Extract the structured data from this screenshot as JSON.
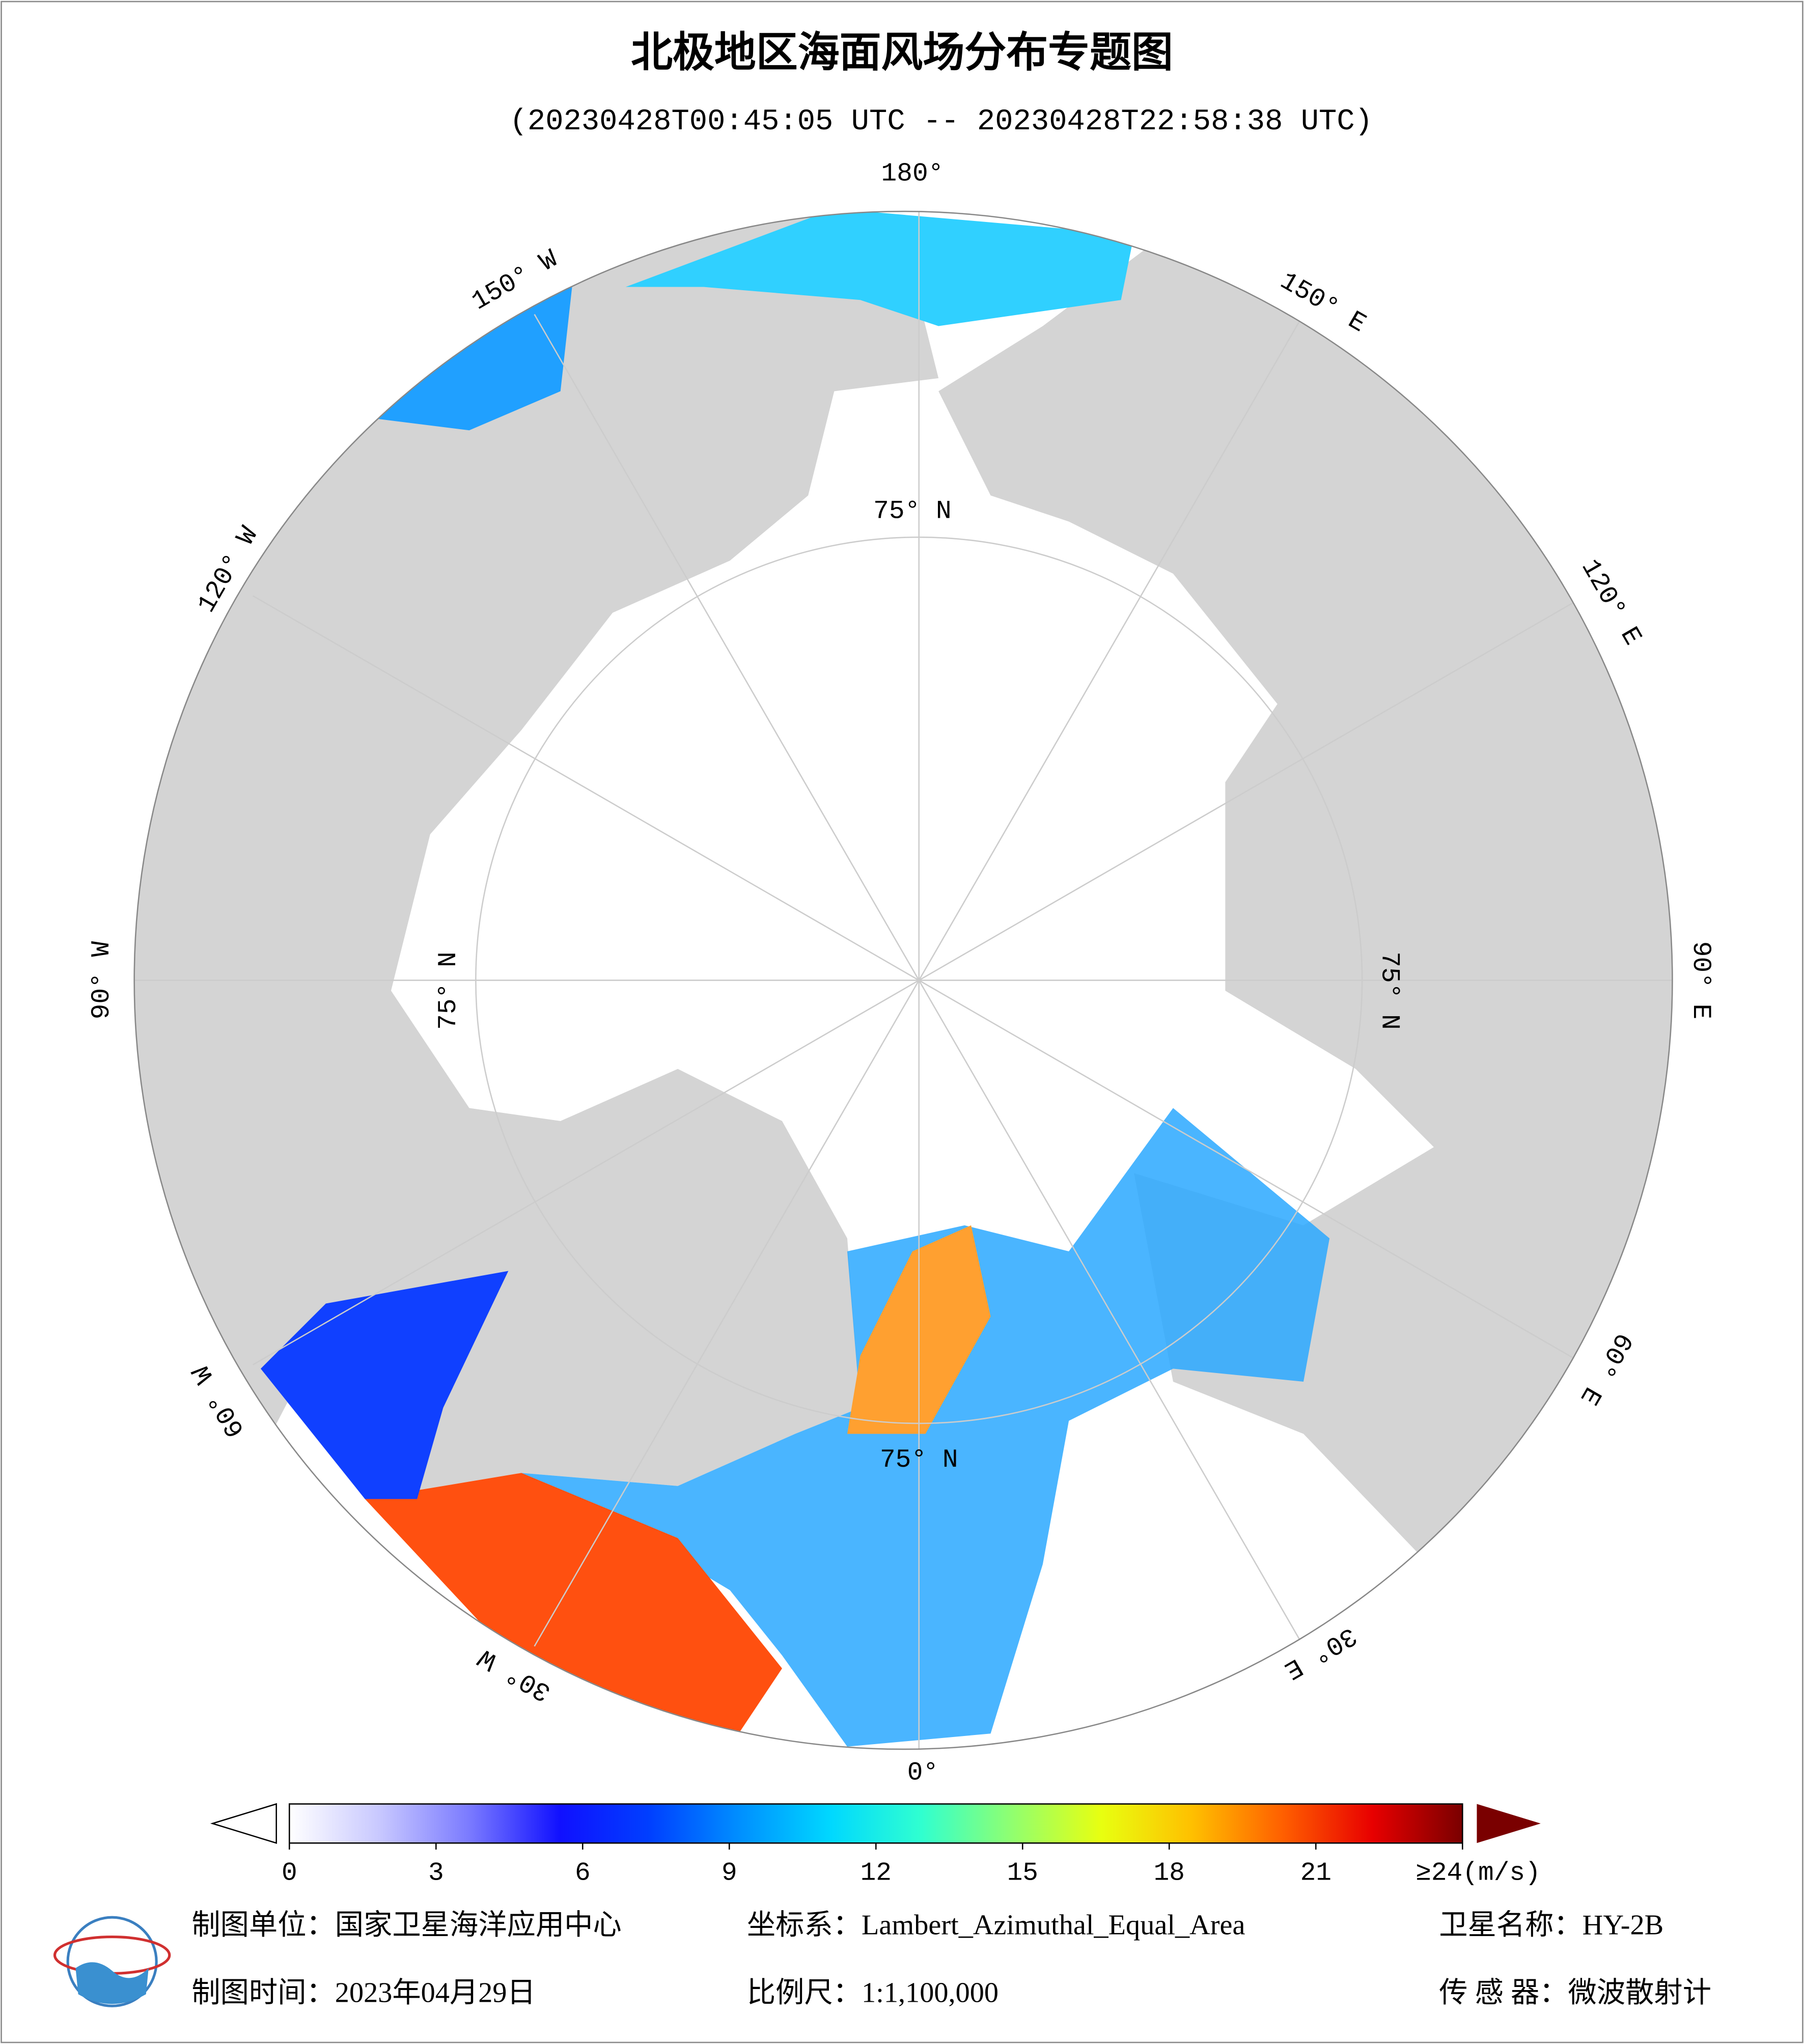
{
  "header": {
    "title": "北极地区海面风场分布专题图",
    "subtitle": "(20230428T00:45:05 UTC -- 20230428T22:58:38 UTC)"
  },
  "map": {
    "lon_labels": [
      "180°",
      "150° W",
      "120° W",
      "90° W",
      "60° W",
      "30° W",
      "0°",
      "30° E",
      "60° E",
      "90° E",
      "120° E",
      "150° E"
    ],
    "lat_label": "75° N"
  },
  "colorbar": {
    "lim": [
      0,
      24
    ],
    "ticks": [
      0,
      3,
      6,
      9,
      12,
      15,
      18,
      21,
      {
        "value": 24,
        "label": "≥24(m/s)"
      }
    ],
    "colors": [
      "#ffffff",
      "#c8c8ff",
      "#7a7aff",
      "#1010ff",
      "#0040ff",
      "#0090ff",
      "#00d8ff",
      "#30ffd0",
      "#90ff70",
      "#e8ff10",
      "#ffc000",
      "#ff6000",
      "#e80000",
      "#7a0000"
    ],
    "over_color": "#7a0000"
  },
  "footer": {
    "unit": "制图单位：国家卫星海洋应用中心",
    "crs": "坐标系：Lambert_Azimuthal_Equal_Area",
    "satellite": "卫星名称：HY-2B",
    "date": "制图时间：2023年04月29日",
    "scale": "比例尺：1:1,100,000",
    "sensor": "传 感 器：微波散射计"
  }
}
